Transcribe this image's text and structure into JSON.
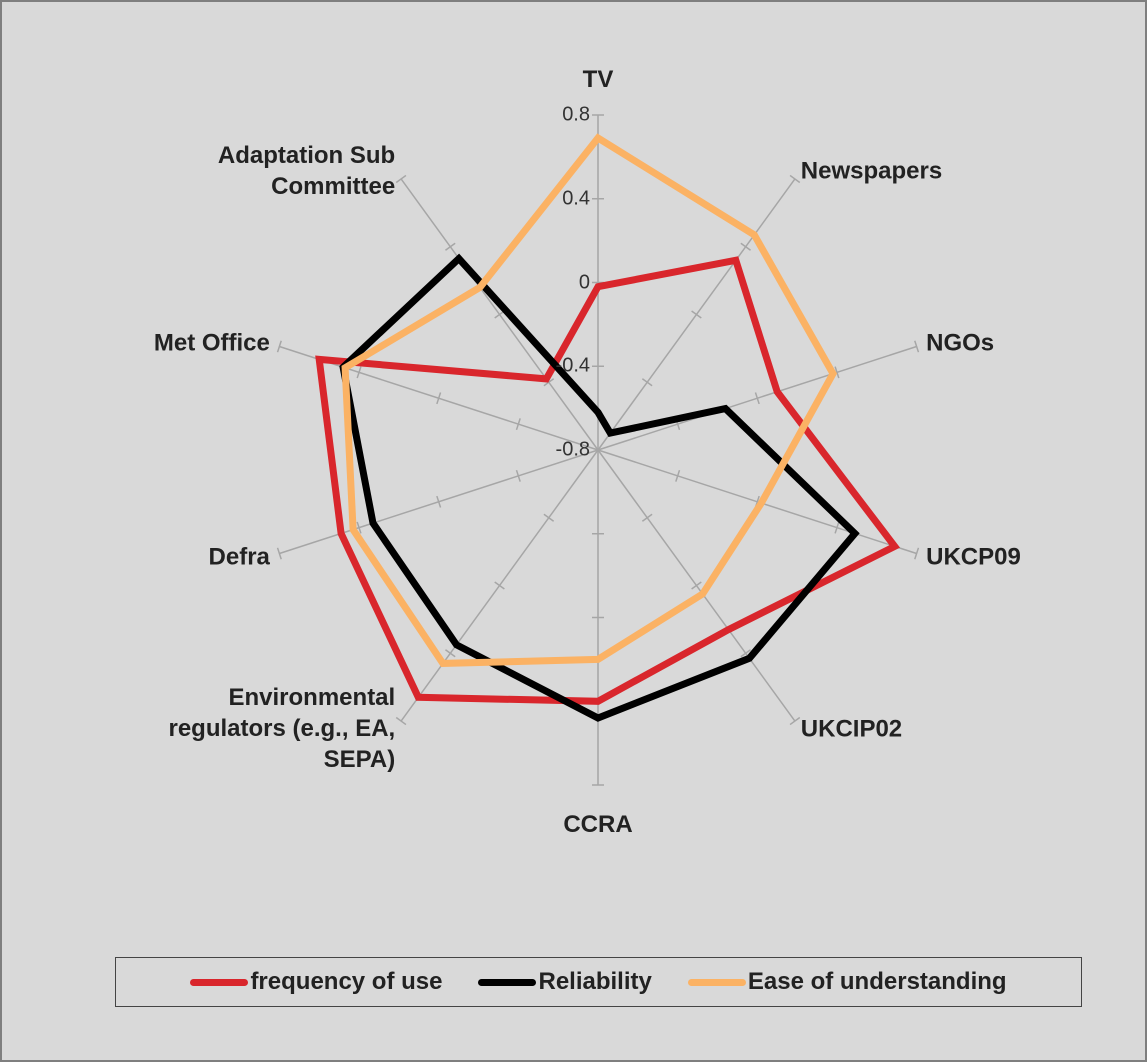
{
  "chart_data": {
    "type": "radar",
    "categories": [
      "TV",
      "Newspapers",
      "NGOs",
      "UKCP09",
      "UKCIP02",
      "CCRA",
      "Environmental\nregulators (e.g., EA,\nSEPA)",
      "Defra",
      "Met Office",
      "Adaptation Sub\nCommittee"
    ],
    "series": [
      {
        "name": "frequency of use",
        "color": "#d9262c",
        "values": [
          -0.02,
          0.32,
          0.1,
          0.69,
          0.26,
          0.4,
          0.66,
          0.49,
          0.6,
          -0.38
        ]
      },
      {
        "name": "Reliability",
        "color": "#000000",
        "values": [
          -0.62,
          -0.7,
          -0.16,
          0.49,
          0.43,
          0.48,
          0.35,
          0.33,
          0.48,
          0.33
        ]
      },
      {
        "name": "Ease of understanding",
        "color": "#fbb264",
        "values": [
          0.69,
          0.47,
          0.38,
          0.02,
          0.05,
          0.2,
          0.46,
          0.43,
          0.47,
          0.16
        ]
      }
    ],
    "ylim": [
      -0.8,
      0.8
    ],
    "yticks": [
      -0.8,
      -0.4,
      0,
      0.4,
      0.8
    ],
    "legend": "bottom"
  }
}
